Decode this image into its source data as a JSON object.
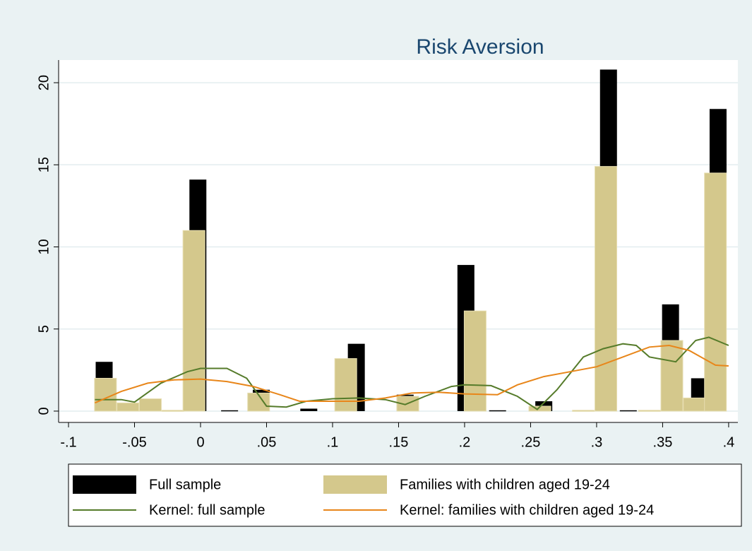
{
  "chart_data": {
    "type": "combo",
    "title": "Risk Aversion",
    "xlim": [
      -0.1075,
      0.407
    ],
    "ylim": [
      -0.69,
      21.38
    ],
    "xticks": [
      {
        "value": -0.1,
        "label": "-.1"
      },
      {
        "value": -0.05,
        "label": "-.05"
      },
      0,
      {
        "value": 0.05,
        "label": ".05"
      },
      {
        "value": 0.1,
        "label": ".1"
      },
      {
        "value": 0.15,
        "label": ".15"
      },
      {
        "value": 0.2,
        "label": ".2"
      },
      {
        "value": 0.25,
        "label": ".25"
      },
      {
        "value": 0.3,
        "label": ".3"
      },
      {
        "value": 0.35,
        "label": ".35"
      },
      {
        "value": 0.4,
        "label": ".4"
      }
    ],
    "yticks": [
      0,
      5,
      10,
      15,
      20
    ],
    "grid": true,
    "legend": "bottom",
    "series": [
      {
        "name": "Full sample",
        "type": "bar",
        "color": "#000000",
        "x": [
          -0.073,
          -0.002,
          0.022,
          0.046,
          0.082,
          0.118,
          0.155,
          0.201,
          0.225,
          0.26,
          0.309,
          0.324,
          0.356,
          0.378,
          0.392
        ],
        "values": [
          3.0,
          14.1,
          0.05,
          1.3,
          0.15,
          4.1,
          1.0,
          8.9,
          0.05,
          0.6,
          20.8,
          0.05,
          6.5,
          2.0,
          18.4
        ]
      },
      {
        "name": "Families with children aged 19-24",
        "type": "bar",
        "color": "#d4c88c",
        "x": [
          -0.072,
          -0.055,
          -0.038,
          -0.021,
          -0.005,
          0.044,
          0.11,
          0.157,
          0.208,
          0.257,
          0.29,
          0.307,
          0.34,
          0.357,
          0.374,
          0.39
        ],
        "values": [
          2.0,
          0.5,
          0.75,
          0.05,
          11.0,
          1.1,
          3.2,
          0.9,
          6.1,
          0.3,
          0.05,
          14.9,
          0.05,
          4.3,
          0.8,
          14.5
        ]
      },
      {
        "name": "Kernel: full sample",
        "type": "line",
        "color": "#557b2a",
        "x": [
          -0.08,
          -0.06,
          -0.05,
          -0.03,
          -0.01,
          0.0,
          0.02,
          0.035,
          0.05,
          0.065,
          0.08,
          0.1,
          0.12,
          0.14,
          0.155,
          0.17,
          0.19,
          0.2,
          0.22,
          0.24,
          0.255,
          0.27,
          0.29,
          0.305,
          0.32,
          0.33,
          0.34,
          0.36,
          0.375,
          0.385,
          0.4
        ],
        "values": [
          0.7,
          0.7,
          0.55,
          1.7,
          2.4,
          2.6,
          2.6,
          2.0,
          0.3,
          0.25,
          0.6,
          0.75,
          0.8,
          0.7,
          0.4,
          0.9,
          1.5,
          1.6,
          1.55,
          0.9,
          0.1,
          1.3,
          3.3,
          3.8,
          4.1,
          4.0,
          3.3,
          3.0,
          4.3,
          4.5,
          4.0
        ]
      },
      {
        "name": "Kernel: families with children aged 19-24",
        "type": "line",
        "color": "#e8861a",
        "x": [
          -0.08,
          -0.06,
          -0.04,
          -0.02,
          0.0,
          0.02,
          0.04,
          0.06,
          0.075,
          0.09,
          0.12,
          0.14,
          0.16,
          0.18,
          0.2,
          0.225,
          0.24,
          0.26,
          0.28,
          0.3,
          0.32,
          0.34,
          0.355,
          0.37,
          0.39,
          0.4
        ],
        "values": [
          0.5,
          1.2,
          1.7,
          1.9,
          1.95,
          1.8,
          1.5,
          1.0,
          0.6,
          0.6,
          0.6,
          0.8,
          1.1,
          1.15,
          1.05,
          1.0,
          1.6,
          2.1,
          2.4,
          2.7,
          3.3,
          3.9,
          4.0,
          3.7,
          2.8,
          2.75
        ]
      }
    ]
  }
}
